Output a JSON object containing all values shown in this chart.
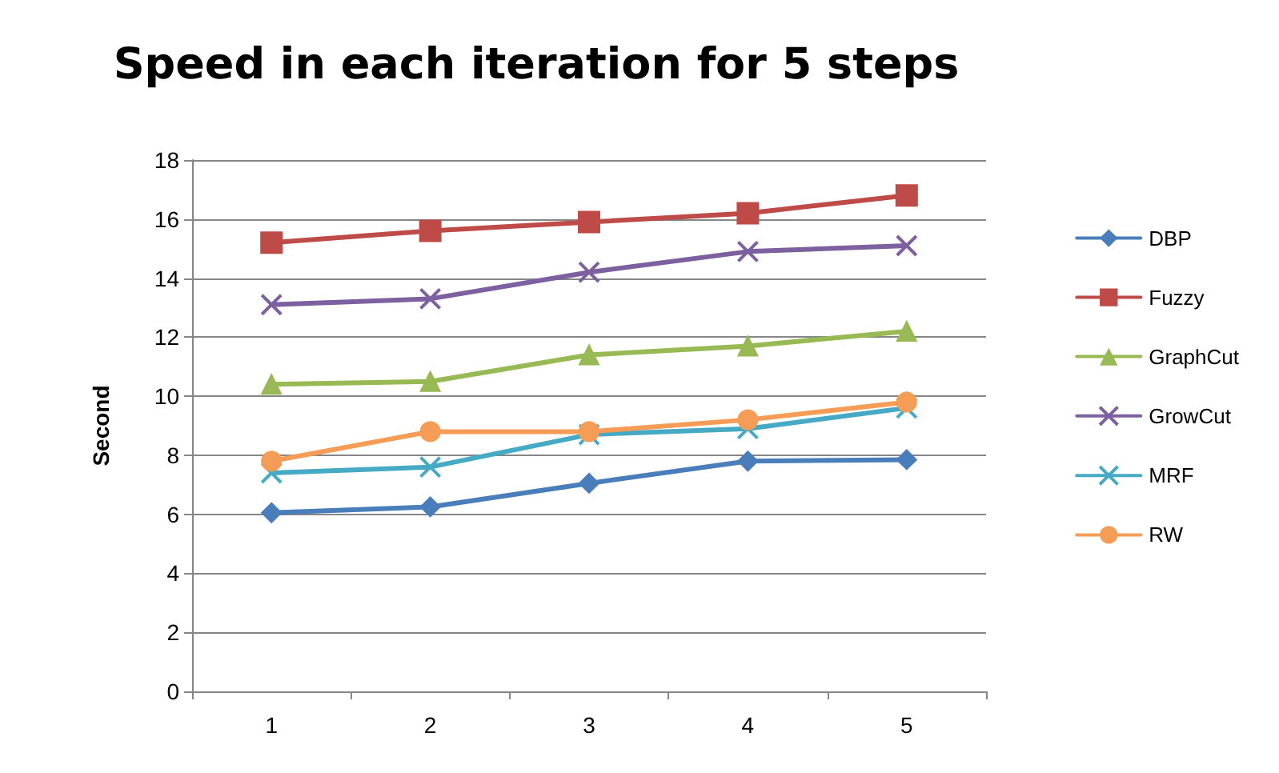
{
  "chart_data": {
    "type": "line",
    "title": "Speed in each iteration for 5 steps",
    "ylabel": "Second",
    "categories": [
      "1",
      "2",
      "3",
      "4",
      "5"
    ],
    "ylim": [
      0,
      18
    ],
    "yticks": [
      0,
      2,
      4,
      6,
      8,
      10,
      12,
      14,
      16,
      18
    ],
    "grid": "y",
    "legend": "right",
    "series": [
      {
        "name": "DBP",
        "color": "#4a7ebb",
        "marker": "diamond",
        "values": [
          6.05,
          6.25,
          7.05,
          7.8,
          7.85
        ]
      },
      {
        "name": "Fuzzy",
        "color": "#be4b48",
        "marker": "square",
        "values": [
          15.2,
          15.6,
          15.9,
          16.2,
          16.8
        ]
      },
      {
        "name": "GraphCut",
        "color": "#98b954",
        "marker": "triangle",
        "values": [
          10.4,
          10.5,
          11.4,
          11.7,
          12.2
        ]
      },
      {
        "name": "GrowCut",
        "color": "#7d60a0",
        "marker": "cross",
        "values": [
          13.1,
          13.3,
          14.2,
          14.9,
          15.1
        ]
      },
      {
        "name": "MRF",
        "color": "#46aac5",
        "marker": "cross",
        "values": [
          7.4,
          7.6,
          8.7,
          8.9,
          9.6
        ]
      },
      {
        "name": "RW",
        "color": "#f59d56",
        "marker": "circle",
        "values": [
          7.8,
          8.8,
          8.8,
          9.2,
          9.8
        ]
      }
    ]
  }
}
